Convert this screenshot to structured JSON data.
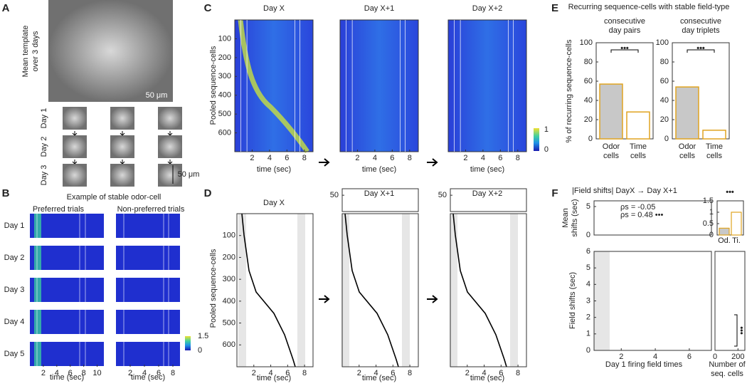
{
  "panels": {
    "A": {
      "letter": "A",
      "template_label": [
        "Mean template",
        "over 3 days"
      ],
      "scalebar": "50 μm",
      "days": [
        "Day 1",
        "Day 2",
        "Day 3"
      ],
      "scalebar2": "50 μm"
    },
    "B": {
      "letter": "B",
      "title": "Example of stable odor-cell",
      "subtitles": [
        "Preferred trials",
        "Non-preferred trials"
      ],
      "days": [
        "Day 1",
        "Day 2",
        "Day 3",
        "Day 4",
        "Day 5"
      ],
      "xlabel": "time (sec)",
      "xlim_left": [
        0,
        11
      ],
      "xticks_left": [
        2,
        4,
        6,
        8,
        10
      ],
      "xlim_right": [
        0,
        9
      ],
      "xticks_right": [
        2,
        4,
        6,
        8
      ],
      "colorbar_lim": [
        0,
        1.5
      ],
      "colorbar_ticks": [
        1.5,
        0
      ]
    },
    "C": {
      "letter": "C",
      "titles": [
        "Day X",
        "Day X+1",
        "Day X+2"
      ],
      "ylabel": "Pooled sequence-cells",
      "ylim": [
        0,
        700
      ],
      "yticks": [
        100,
        200,
        300,
        400,
        500,
        600
      ],
      "xlim": [
        0,
        9
      ],
      "xticks": [
        2,
        4,
        6,
        8
      ],
      "xlabel": "time (sec)",
      "colorbar_lim": [
        0,
        1
      ],
      "colorbar_ticks": [
        1,
        0
      ]
    },
    "D": {
      "letter": "D",
      "titles": [
        "Day X",
        "Day X+1",
        "Day X+2"
      ],
      "ylabel": "Pooled sequence-cells",
      "ylim": [
        0,
        700
      ],
      "yticks": [
        100,
        200,
        300,
        400,
        500,
        600
      ],
      "xlim": [
        0,
        9
      ],
      "xticks": [
        2,
        4,
        6,
        8
      ],
      "xlabel": "time (sec)",
      "inset_ylim": [
        0,
        70
      ],
      "inset_yticks": [
        50
      ]
    },
    "E": {
      "letter": "E",
      "title": "Recurring sequence-cells with stable field-type",
      "ylabel": "% of recurring sequence-cells",
      "categories": [
        [
          "Odor",
          "cells"
        ],
        [
          "Time",
          "cells"
        ]
      ],
      "ylim": [
        0,
        100
      ],
      "yticks": [
        0,
        20,
        40,
        60,
        80,
        100
      ],
      "sig": "•••",
      "charts": [
        {
          "subtitle": [
            "consecutive",
            "day pairs"
          ],
          "values": [
            57,
            28
          ]
        },
        {
          "subtitle": [
            "consecutive",
            "day triplets"
          ],
          "values": [
            54,
            9
          ]
        }
      ]
    },
    "F": {
      "letter": "F",
      "title": "|Field shifts| DayX → Day X+1",
      "top_ylabel": [
        "Mean",
        "shifts (sec)"
      ],
      "top_ylim": [
        0,
        6
      ],
      "top_yticks": [
        0,
        5
      ],
      "legend": [
        {
          "text": "ρs = -0.05",
          "color": "#2f8fd8"
        },
        {
          "text": "ρs = 0.48 •••",
          "color": "#e0a420"
        }
      ],
      "inset": {
        "categories": [
          "Od.",
          "Ti."
        ],
        "values": [
          0.3,
          1.0
        ],
        "ylim": [
          0,
          1.5
        ],
        "yticks": [
          0,
          0.5,
          1,
          1.5
        ],
        "sig": "•••"
      },
      "ylabel": "Field shifts (sec)",
      "ylim": [
        0,
        6
      ],
      "yticks": [
        0,
        1,
        2,
        3,
        4,
        5,
        6
      ],
      "xlim": [
        0.4,
        7.3
      ],
      "xticks": [
        2,
        4,
        6
      ],
      "xlabel": "Day 1 firing field times",
      "hist_xlim": [
        0,
        260
      ],
      "hist_xticks": [
        0,
        200
      ],
      "hist_xlabel": [
        "Number of",
        "seq. cells"
      ],
      "hist_sig": "•••"
    }
  }
}
